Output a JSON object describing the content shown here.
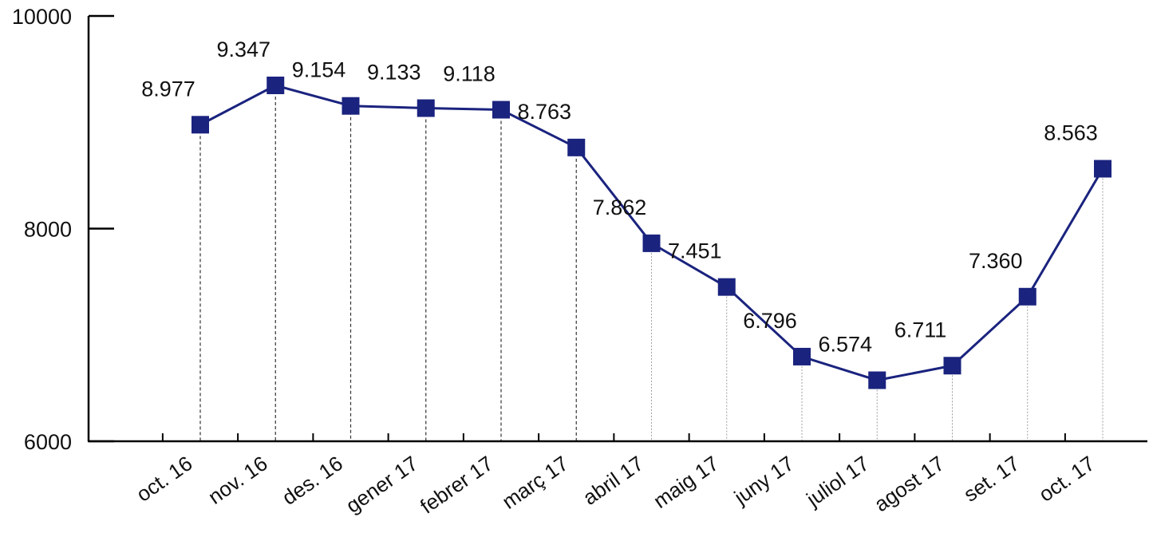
{
  "chart_data": {
    "type": "line",
    "title": "",
    "xlabel": "",
    "ylabel": "",
    "categories": [
      "oct. 16",
      "nov. 16",
      "des. 16",
      "gener 17",
      "febrer 17",
      "març 17",
      "abril 17",
      "maig 17",
      "juny 17",
      "juliol 17",
      "agost 17",
      "set. 17",
      "oct. 17"
    ],
    "series": [
      {
        "values": [
          8977,
          9347,
          9154,
          9133,
          9118,
          8763,
          7862,
          7451,
          6796,
          6574,
          6711,
          7360,
          8563
        ],
        "labels": [
          "8.977",
          "9.347",
          "9.154",
          "9.133",
          "9.118",
          "8.763",
          "7.862",
          "7.451",
          "6.796",
          "6.574",
          "6.711",
          "7.360",
          "8.563"
        ]
      }
    ],
    "ylim": [
      6000,
      10000
    ],
    "yticks": [
      "6000",
      "8000",
      "10000"
    ],
    "grid": false,
    "legend": "none",
    "colors": {
      "line": "#1a237e",
      "marker": "#1a237e",
      "axis": "#000000"
    }
  }
}
